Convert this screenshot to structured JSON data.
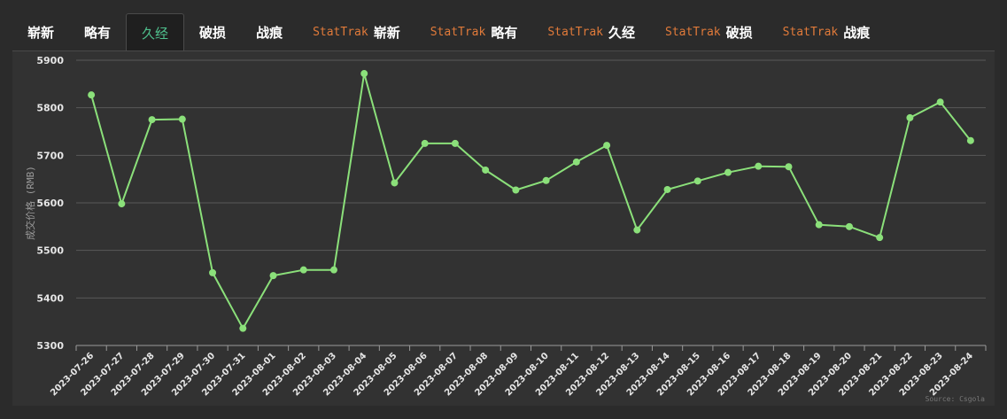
{
  "tabs": [
    {
      "prefix": "",
      "label": "崭新",
      "active": false
    },
    {
      "prefix": "",
      "label": "略有",
      "active": false
    },
    {
      "prefix": "",
      "label": "久经",
      "active": true
    },
    {
      "prefix": "",
      "label": "破损",
      "active": false
    },
    {
      "prefix": "",
      "label": "战痕",
      "active": false
    },
    {
      "prefix": "StatTrak",
      "label": "崭新",
      "active": false
    },
    {
      "prefix": "StatTrak",
      "label": "略有",
      "active": false
    },
    {
      "prefix": "StatTrak",
      "label": "久经",
      "active": false
    },
    {
      "prefix": "StatTrak",
      "label": "破损",
      "active": false
    },
    {
      "prefix": "StatTrak",
      "label": "战痕",
      "active": false
    }
  ],
  "colors": {
    "line": "#8be07a",
    "grid": "#5a5a5a",
    "accent": "#4fc08d",
    "stattrak": "#e07a3a"
  },
  "chart_data": {
    "type": "line",
    "title": "",
    "xlabel": "",
    "ylabel": "成交价格 (RMB)",
    "ylim": [
      5300,
      5900
    ],
    "yticks": [
      5300,
      5400,
      5500,
      5600,
      5700,
      5800,
      5900
    ],
    "grid": true,
    "credit": "Source: Csgola",
    "x": [
      "2023-07-26",
      "2023-07-27",
      "2023-07-28",
      "2023-07-29",
      "2023-07-30",
      "2023-07-31",
      "2023-08-01",
      "2023-08-02",
      "2023-08-03",
      "2023-08-04",
      "2023-08-05",
      "2023-08-06",
      "2023-08-07",
      "2023-08-08",
      "2023-08-09",
      "2023-08-10",
      "2023-08-11",
      "2023-08-12",
      "2023-08-13",
      "2023-08-14",
      "2023-08-15",
      "2023-08-16",
      "2023-08-17",
      "2023-08-18",
      "2023-08-19",
      "2023-08-20",
      "2023-08-21",
      "2023-08-22",
      "2023-08-23",
      "2023-08-24"
    ],
    "series": [
      {
        "values": [
          5827,
          5598,
          5775,
          5776,
          5453,
          5336,
          5447,
          5459,
          5459,
          5872,
          5642,
          5725,
          5725,
          5669,
          5627,
          5647,
          5686,
          5721,
          5543,
          5628,
          5646,
          5664,
          5677,
          5676,
          5554,
          5550,
          5527,
          5779,
          5812,
          5731
        ]
      }
    ]
  }
}
